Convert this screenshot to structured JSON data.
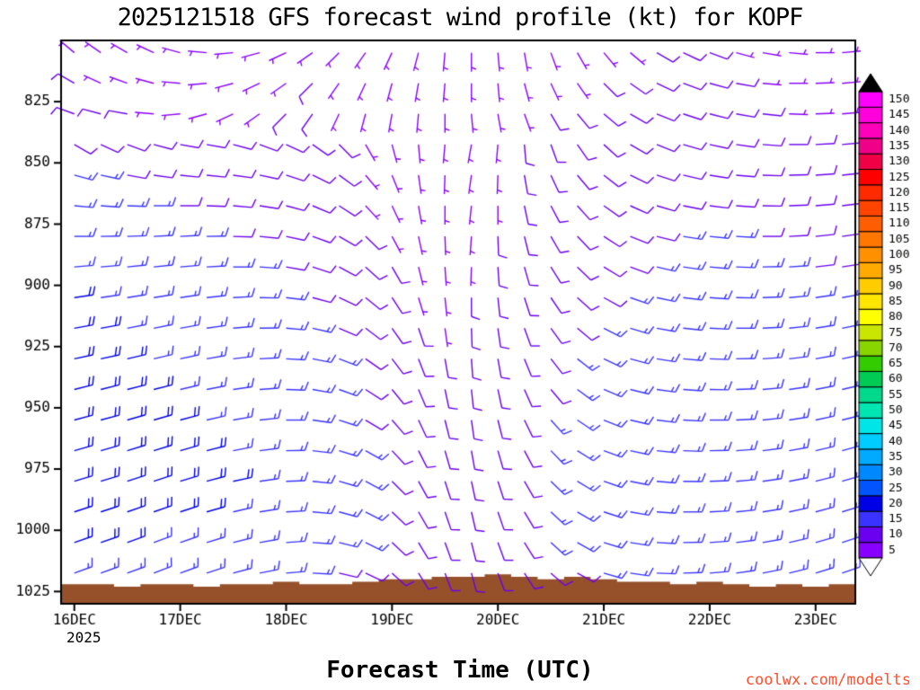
{
  "watermark": {
    "text": "coolwx.com/modelts",
    "color": "#ff5030"
  },
  "chart_data": {
    "type": "scatter",
    "subtype": "wind-barb-time-height-profile",
    "model": "GFS",
    "init": "2025121518",
    "station": "KOPF",
    "units": "kt",
    "title": "2025121518 GFS forecast wind profile (kt) for KOPF",
    "xlabel": "Forecast Time (UTC)",
    "x_axis_year": "2025",
    "x_tick_labels": [
      "16DEC",
      "17DEC",
      "18DEC",
      "19DEC",
      "20DEC",
      "21DEC",
      "22DEC",
      "23DEC"
    ],
    "x_tick_cols": [
      0,
      4,
      8,
      12,
      16,
      20,
      24,
      28
    ],
    "times": [
      "16DEC00Z",
      "16DEC06Z",
      "16DEC12Z",
      "16DEC18Z",
      "17DEC00Z",
      "17DEC06Z",
      "17DEC12Z",
      "17DEC18Z",
      "18DEC00Z",
      "18DEC06Z",
      "18DEC12Z",
      "18DEC18Z",
      "19DEC00Z",
      "19DEC06Z",
      "19DEC12Z",
      "19DEC18Z",
      "20DEC00Z",
      "20DEC06Z",
      "20DEC12Z",
      "20DEC18Z",
      "21DEC00Z",
      "21DEC06Z",
      "21DEC12Z",
      "21DEC18Z",
      "22DEC00Z",
      "22DEC06Z",
      "22DEC12Z",
      "22DEC18Z",
      "23DEC00Z",
      "23DEC06Z"
    ],
    "y_axis": {
      "units": "hPa",
      "ticks": [
        825,
        850,
        875,
        900,
        925,
        950,
        975,
        1000,
        1025
      ],
      "range": [
        800,
        1030
      ]
    },
    "terrain": {
      "color": "#96512b",
      "base_hpa": 1030,
      "top_hpa": [
        1022,
        1022,
        1023,
        1022,
        1022,
        1023,
        1022,
        1022,
        1021,
        1022,
        1022,
        1021,
        1020,
        1020,
        1019,
        1019,
        1018,
        1019,
        1020,
        1019,
        1020,
        1021,
        1021,
        1022,
        1021,
        1022,
        1023,
        1022,
        1023,
        1022
      ]
    },
    "colorbar": {
      "levels": [
        5,
        10,
        15,
        20,
        25,
        30,
        35,
        40,
        45,
        50,
        55,
        60,
        65,
        70,
        75,
        80,
        85,
        90,
        95,
        100,
        105,
        110,
        115,
        120,
        125,
        130,
        135,
        140,
        145,
        150
      ],
      "colors": [
        "#8800ff",
        "#6a00f0",
        "#3a33ff",
        "#0000e6",
        "#0055ff",
        "#0088ff",
        "#00aaff",
        "#00ccff",
        "#00e6e6",
        "#00e6b3",
        "#00d98c",
        "#00cc55",
        "#33cc00",
        "#88d500",
        "#c8e600",
        "#ffff00",
        "#ffe600",
        "#ffcc00",
        "#ffaa00",
        "#ff9100",
        "#ff7700",
        "#ff5e00",
        "#ff4400",
        "#ff2a00",
        "#ff0000",
        "#f00044",
        "#f00088",
        "#ff00bb",
        "#ff00dd",
        "#ff00ff"
      ],
      "over_color": "#000000",
      "under_color": "#ffffff"
    },
    "barbs": [
      {
        "p": 805,
        "spd": [
          7,
          6,
          6,
          5,
          5,
          5,
          6,
          6,
          7,
          7,
          6,
          6,
          5,
          5,
          5,
          5,
          6,
          6,
          6,
          7,
          7,
          7,
          8,
          8,
          8,
          7,
          7,
          6,
          6,
          6
        ],
        "dir": [
          310,
          305,
          300,
          295,
          285,
          275,
          265,
          255,
          245,
          235,
          225,
          215,
          205,
          195,
          185,
          180,
          175,
          170,
          160,
          150,
          140,
          130,
          120,
          115,
          110,
          105,
          100,
          95,
          90,
          85
        ]
      },
      {
        "p": 817.5,
        "spd": [
          8,
          7,
          6,
          6,
          5,
          5,
          6,
          7,
          7,
          8,
          7,
          6,
          6,
          5,
          5,
          6,
          6,
          7,
          7,
          7,
          8,
          8,
          8,
          9,
          8,
          8,
          7,
          7,
          6,
          6
        ],
        "dir": [
          300,
          295,
          290,
          285,
          275,
          265,
          255,
          245,
          235,
          225,
          215,
          205,
          195,
          190,
          185,
          180,
          175,
          165,
          155,
          145,
          135,
          125,
          115,
          110,
          105,
          100,
          95,
          90,
          88,
          85
        ]
      },
      {
        "p": 830,
        "spd": [
          9,
          8,
          8,
          7,
          6,
          6,
          7,
          7,
          8,
          8,
          7,
          7,
          6,
          5,
          5,
          6,
          7,
          7,
          8,
          8,
          8,
          9,
          9,
          9,
          9,
          8,
          8,
          7,
          7,
          7
        ],
        "dir": [
          290,
          285,
          280,
          275,
          265,
          255,
          245,
          235,
          225,
          215,
          205,
          195,
          190,
          185,
          180,
          175,
          170,
          160,
          150,
          140,
          130,
          120,
          112,
          108,
          104,
          100,
          96,
          92,
          88,
          85
        ]
      },
      {
        "p": 842.5,
        "spd": [
          12,
          11,
          10,
          9,
          8,
          8,
          8,
          9,
          9,
          8,
          8,
          7,
          6,
          6,
          5,
          6,
          7,
          8,
          8,
          9,
          9,
          10,
          10,
          10,
          10,
          9,
          9,
          8,
          8,
          8
        ],
        "dir": [
          120,
          115,
          110,
          105,
          100,
          100,
          105,
          110,
          115,
          125,
          135,
          150,
          165,
          175,
          185,
          190,
          185,
          175,
          160,
          145,
          132,
          120,
          112,
          106,
          102,
          98,
          94,
          90,
          87,
          85
        ]
      },
      {
        "p": 855,
        "spd": [
          14,
          13,
          12,
          11,
          10,
          10,
          10,
          10,
          9,
          9,
          8,
          7,
          6,
          6,
          6,
          6,
          7,
          8,
          9,
          9,
          10,
          10,
          11,
          11,
          11,
          10,
          10,
          9,
          9,
          9
        ],
        "dir": [
          105,
          102,
          100,
          98,
          96,
          96,
          98,
          102,
          108,
          116,
          126,
          140,
          158,
          172,
          182,
          188,
          182,
          170,
          155,
          140,
          128,
          116,
          108,
          103,
          99,
          95,
          92,
          89,
          86,
          84
        ]
      },
      {
        "p": 867.5,
        "spd": [
          15,
          15,
          14,
          13,
          12,
          12,
          11,
          11,
          10,
          9,
          8,
          7,
          6,
          6,
          6,
          7,
          7,
          8,
          9,
          10,
          10,
          11,
          11,
          12,
          12,
          12,
          11,
          11,
          10,
          10
        ],
        "dir": [
          95,
          94,
          92,
          90,
          90,
          92,
          95,
          99,
          105,
          113,
          123,
          137,
          155,
          170,
          180,
          186,
          180,
          168,
          152,
          138,
          125,
          114,
          106,
          101,
          97,
          94,
          91,
          88,
          85,
          83
        ]
      },
      {
        "p": 880,
        "spd": [
          16,
          16,
          15,
          14,
          13,
          13,
          12,
          12,
          11,
          10,
          9,
          8,
          7,
          6,
          6,
          7,
          8,
          9,
          10,
          10,
          11,
          12,
          12,
          13,
          13,
          13,
          12,
          12,
          11,
          11
        ],
        "dir": [
          90,
          89,
          88,
          87,
          87,
          89,
          92,
          96,
          102,
          110,
          120,
          134,
          152,
          168,
          178,
          184,
          178,
          166,
          150,
          136,
          123,
          112,
          104,
          99,
          96,
          93,
          90,
          87,
          84,
          82
        ]
      },
      {
        "p": 892.5,
        "spd": [
          17,
          16,
          16,
          15,
          14,
          14,
          13,
          13,
          12,
          11,
          10,
          9,
          8,
          7,
          7,
          7,
          8,
          9,
          10,
          11,
          12,
          12,
          13,
          13,
          14,
          14,
          13,
          13,
          12,
          12
        ],
        "dir": [
          85,
          85,
          84,
          84,
          85,
          87,
          90,
          94,
          100,
          108,
          118,
          132,
          150,
          166,
          176,
          182,
          176,
          164,
          148,
          134,
          121,
          110,
          103,
          98,
          95,
          92,
          89,
          86,
          83,
          81
        ]
      },
      {
        "p": 905,
        "spd": [
          18,
          17,
          17,
          16,
          15,
          15,
          14,
          14,
          13,
          12,
          11,
          10,
          8,
          7,
          7,
          8,
          9,
          10,
          11,
          12,
          12,
          13,
          13,
          14,
          14,
          14,
          14,
          13,
          13,
          13
        ],
        "dir": [
          82,
          82,
          81,
          81,
          82,
          84,
          87,
          91,
          97,
          105,
          115,
          129,
          147,
          163,
          174,
          180,
          174,
          162,
          146,
          132,
          119,
          109,
          102,
          97,
          94,
          91,
          88,
          85,
          82,
          80
        ]
      },
      {
        "p": 917.5,
        "spd": [
          18,
          18,
          17,
          17,
          16,
          16,
          15,
          15,
          14,
          13,
          12,
          10,
          9,
          8,
          7,
          8,
          9,
          10,
          12,
          12,
          13,
          13,
          14,
          14,
          15,
          15,
          14,
          14,
          14,
          14
        ],
        "dir": [
          80,
          80,
          79,
          79,
          80,
          82,
          85,
          89,
          95,
          103,
          113,
          127,
          145,
          161,
          172,
          178,
          172,
          160,
          144,
          130,
          117,
          107,
          100,
          96,
          93,
          90,
          87,
          84,
          81,
          79
        ]
      },
      {
        "p": 930,
        "spd": [
          19,
          18,
          18,
          17,
          17,
          16,
          16,
          15,
          15,
          14,
          13,
          11,
          9,
          8,
          8,
          8,
          9,
          11,
          12,
          13,
          13,
          14,
          14,
          15,
          15,
          15,
          15,
          15,
          14,
          14
        ],
        "dir": [
          78,
          78,
          77,
          77,
          78,
          80,
          83,
          87,
          93,
          101,
          111,
          125,
          143,
          159,
          170,
          176,
          170,
          158,
          142,
          128,
          115,
          105,
          99,
          95,
          92,
          89,
          86,
          83,
          80,
          78
        ]
      },
      {
        "p": 942.5,
        "spd": [
          19,
          19,
          18,
          18,
          17,
          17,
          16,
          16,
          15,
          14,
          13,
          12,
          10,
          9,
          8,
          9,
          10,
          11,
          12,
          13,
          14,
          14,
          15,
          15,
          16,
          16,
          15,
          15,
          15,
          15
        ],
        "dir": [
          76,
          76,
          76,
          76,
          77,
          79,
          82,
          86,
          92,
          100,
          110,
          123,
          141,
          157,
          168,
          174,
          168,
          156,
          140,
          126,
          113,
          104,
          98,
          94,
          91,
          88,
          85,
          82,
          79,
          77
        ]
      },
      {
        "p": 955,
        "spd": [
          20,
          19,
          19,
          18,
          18,
          17,
          17,
          16,
          16,
          15,
          14,
          12,
          10,
          9,
          9,
          9,
          10,
          12,
          13,
          13,
          14,
          15,
          15,
          16,
          16,
          16,
          16,
          16,
          15,
          15
        ],
        "dir": [
          75,
          75,
          74,
          74,
          75,
          77,
          80,
          84,
          90,
          98,
          108,
          121,
          139,
          155,
          166,
          172,
          166,
          154,
          138,
          124,
          112,
          103,
          97,
          93,
          90,
          87,
          84,
          81,
          78,
          76
        ]
      },
      {
        "p": 967.5,
        "spd": [
          20,
          20,
          19,
          19,
          18,
          18,
          17,
          17,
          16,
          15,
          14,
          13,
          11,
          10,
          9,
          10,
          11,
          12,
          13,
          14,
          14,
          15,
          15,
          16,
          16,
          17,
          16,
          16,
          16,
          16
        ],
        "dir": [
          74,
          74,
          73,
          73,
          74,
          76,
          79,
          83,
          89,
          97,
          107,
          119,
          137,
          153,
          164,
          170,
          164,
          152,
          136,
          122,
          110,
          102,
          96,
          92,
          89,
          86,
          83,
          80,
          77,
          75
        ]
      },
      {
        "p": 980,
        "spd": [
          20,
          20,
          19,
          19,
          19,
          18,
          18,
          17,
          17,
          16,
          15,
          13,
          11,
          10,
          10,
          10,
          11,
          12,
          13,
          14,
          15,
          15,
          16,
          16,
          17,
          17,
          17,
          16,
          16,
          16
        ],
        "dir": [
          73,
          73,
          72,
          72,
          73,
          75,
          78,
          82,
          88,
          96,
          106,
          118,
          135,
          151,
          162,
          168,
          162,
          150,
          134,
          121,
          109,
          101,
          95,
          91,
          88,
          85,
          82,
          79,
          76,
          74
        ]
      },
      {
        "p": 992.5,
        "spd": [
          19,
          19,
          19,
          18,
          18,
          18,
          17,
          17,
          16,
          16,
          15,
          13,
          11,
          10,
          10,
          10,
          11,
          12,
          13,
          14,
          15,
          15,
          16,
          16,
          17,
          17,
          17,
          17,
          16,
          16
        ],
        "dir": [
          72,
          72,
          71,
          71,
          72,
          74,
          77,
          81,
          87,
          95,
          105,
          117,
          134,
          150,
          161,
          167,
          161,
          149,
          133,
          120,
          108,
          100,
          94,
          90,
          87,
          84,
          81,
          78,
          75,
          73
        ]
      },
      {
        "p": 1005,
        "spd": [
          18,
          18,
          18,
          17,
          17,
          17,
          16,
          16,
          16,
          15,
          14,
          13,
          11,
          10,
          10,
          10,
          11,
          12,
          13,
          14,
          14,
          15,
          15,
          16,
          16,
          16,
          16,
          16,
          15,
          15
        ],
        "dir": [
          71,
          71,
          70,
          70,
          71,
          73,
          76,
          80,
          86,
          94,
          104,
          116,
          133,
          149,
          160,
          166,
          160,
          148,
          132,
          119,
          107,
          99,
          93,
          89,
          86,
          83,
          80,
          77,
          74,
          72
        ]
      },
      {
        "p": 1017.5,
        "spd": [
          16,
          16,
          16,
          15,
          15,
          15,
          15,
          14,
          14,
          13,
          12,
          11,
          10,
          9,
          9,
          9,
          10,
          11,
          12,
          12,
          13,
          13,
          14,
          14,
          15,
          15,
          15,
          14,
          14,
          14
        ],
        "dir": [
          70,
          70,
          70,
          69,
          70,
          72,
          75,
          79,
          85,
          93,
          103,
          115,
          132,
          148,
          159,
          165,
          159,
          147,
          131,
          118,
          106,
          98,
          92,
          88,
          85,
          82,
          79,
          76,
          73,
          71
        ]
      }
    ]
  }
}
